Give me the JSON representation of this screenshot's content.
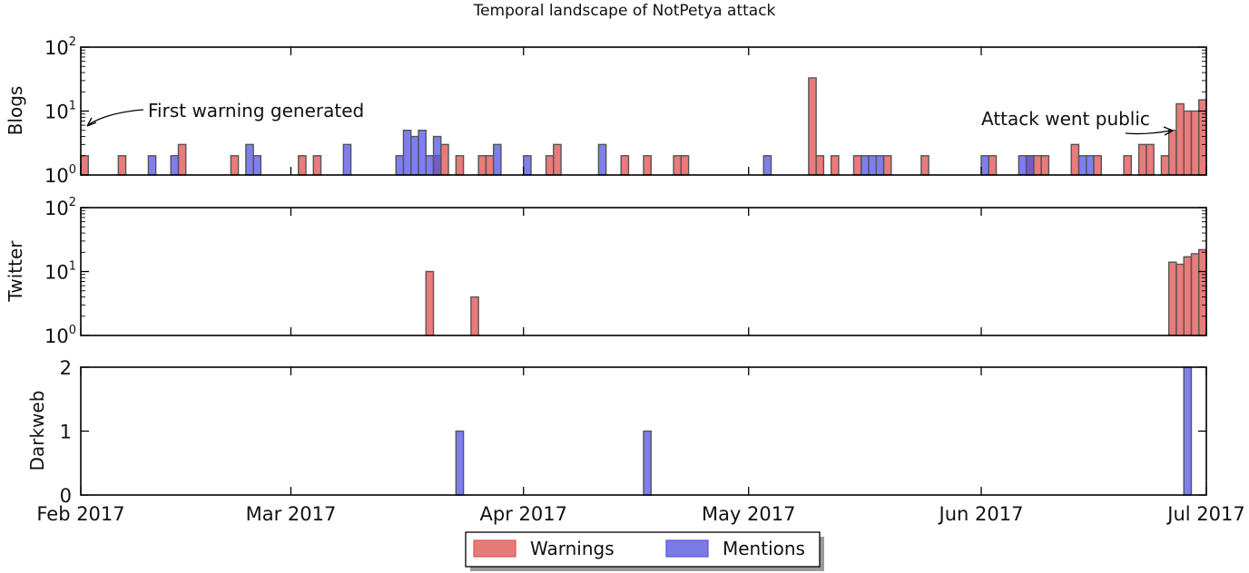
{
  "chart_data": {
    "type": "bar",
    "title": "Temporal landscape of NotPetya attack",
    "x_axis": {
      "range": [
        "2017-02-01",
        "2017-07-01"
      ],
      "ticks": [
        {
          "date": "2017-02-01",
          "label": "Feb 2017"
        },
        {
          "date": "2017-03-01",
          "label": "Mar 2017"
        },
        {
          "date": "2017-04-01",
          "label": "Apr 2017"
        },
        {
          "date": "2017-05-01",
          "label": "May 2017"
        },
        {
          "date": "2017-06-01",
          "label": "Jun 2017"
        },
        {
          "date": "2017-07-01",
          "label": "Jul 2017"
        }
      ]
    },
    "legend": {
      "placement": "bottom-center",
      "entries": [
        {
          "label": "Warnings",
          "color": "#e87a7a"
        },
        {
          "label": "Mentions",
          "color": "#7a7ae8"
        }
      ]
    },
    "panels": [
      {
        "ylabel": "Blogs",
        "scale": "log",
        "ylim": [
          1,
          100
        ],
        "ytick_base": "10",
        "ytick_exponents": [
          "0",
          "1",
          "2"
        ],
        "series": [
          {
            "name": "Warnings",
            "points": [
              [
                "2017-02-01",
                2
              ],
              [
                "2017-02-06",
                2
              ],
              [
                "2017-02-14",
                3
              ],
              [
                "2017-02-21",
                2
              ],
              [
                "2017-03-02",
                2
              ],
              [
                "2017-03-04",
                2
              ],
              [
                "2017-03-20",
                2
              ],
              [
                "2017-03-21",
                3
              ],
              [
                "2017-03-23",
                2
              ],
              [
                "2017-03-26",
                2
              ],
              [
                "2017-03-27",
                2
              ],
              [
                "2017-04-04",
                2
              ],
              [
                "2017-04-05",
                3
              ],
              [
                "2017-04-14",
                2
              ],
              [
                "2017-04-17",
                2
              ],
              [
                "2017-04-21",
                2
              ],
              [
                "2017-04-22",
                2
              ],
              [
                "2017-05-09",
                33
              ],
              [
                "2017-05-10",
                2
              ],
              [
                "2017-05-12",
                2
              ],
              [
                "2017-05-15",
                2
              ],
              [
                "2017-05-19",
                2
              ],
              [
                "2017-05-24",
                2
              ],
              [
                "2017-06-02",
                2
              ],
              [
                "2017-06-07",
                2
              ],
              [
                "2017-06-08",
                2
              ],
              [
                "2017-06-09",
                2
              ],
              [
                "2017-06-13",
                3
              ],
              [
                "2017-06-16",
                2
              ],
              [
                "2017-06-20",
                2
              ],
              [
                "2017-06-22",
                3
              ],
              [
                "2017-06-23",
                3
              ],
              [
                "2017-06-25",
                2
              ],
              [
                "2017-06-26",
                5
              ],
              [
                "2017-06-27",
                13
              ],
              [
                "2017-06-28",
                10
              ],
              [
                "2017-06-29",
                10
              ],
              [
                "2017-06-30",
                15
              ]
            ]
          },
          {
            "name": "Mentions",
            "points": [
              [
                "2017-02-10",
                2
              ],
              [
                "2017-02-13",
                2
              ],
              [
                "2017-02-23",
                3
              ],
              [
                "2017-02-24",
                2
              ],
              [
                "2017-03-08",
                3
              ],
              [
                "2017-03-15",
                2
              ],
              [
                "2017-03-16",
                5
              ],
              [
                "2017-03-17",
                4
              ],
              [
                "2017-03-18",
                5
              ],
              [
                "2017-03-19",
                2
              ],
              [
                "2017-03-20",
                4
              ],
              [
                "2017-03-28",
                3
              ],
              [
                "2017-04-01",
                2
              ],
              [
                "2017-04-11",
                3
              ],
              [
                "2017-05-03",
                2
              ],
              [
                "2017-05-16",
                2
              ],
              [
                "2017-05-17",
                2
              ],
              [
                "2017-05-18",
                2
              ],
              [
                "2017-06-01",
                2
              ],
              [
                "2017-06-06",
                2
              ],
              [
                "2017-06-07",
                2
              ],
              [
                "2017-06-14",
                2
              ],
              [
                "2017-06-15",
                2
              ]
            ]
          }
        ]
      },
      {
        "ylabel": "Twitter",
        "scale": "log",
        "ylim": [
          1,
          100
        ],
        "ytick_base": "10",
        "ytick_exponents": [
          "0",
          "1",
          "2"
        ],
        "series": [
          {
            "name": "Warnings",
            "points": [
              [
                "2017-03-19",
                10
              ],
              [
                "2017-03-25",
                4
              ],
              [
                "2017-06-26",
                14
              ],
              [
                "2017-06-27",
                13
              ],
              [
                "2017-06-28",
                17
              ],
              [
                "2017-06-29",
                19
              ],
              [
                "2017-06-30",
                22
              ]
            ]
          },
          {
            "name": "Mentions",
            "points": []
          }
        ]
      },
      {
        "ylabel": "Darkweb",
        "scale": "linear",
        "ylim": [
          0,
          2
        ],
        "yticks": [
          "0",
          "1",
          "2"
        ],
        "series": [
          {
            "name": "Warnings",
            "points": []
          },
          {
            "name": "Mentions",
            "points": [
              [
                "2017-03-23",
                1
              ],
              [
                "2017-04-17",
                1
              ],
              [
                "2017-06-28",
                2
              ]
            ]
          }
        ]
      }
    ],
    "annotations": [
      {
        "text": "First warning generated",
        "panel": 0
      },
      {
        "text": "Attack went public",
        "panel": 0
      }
    ]
  }
}
